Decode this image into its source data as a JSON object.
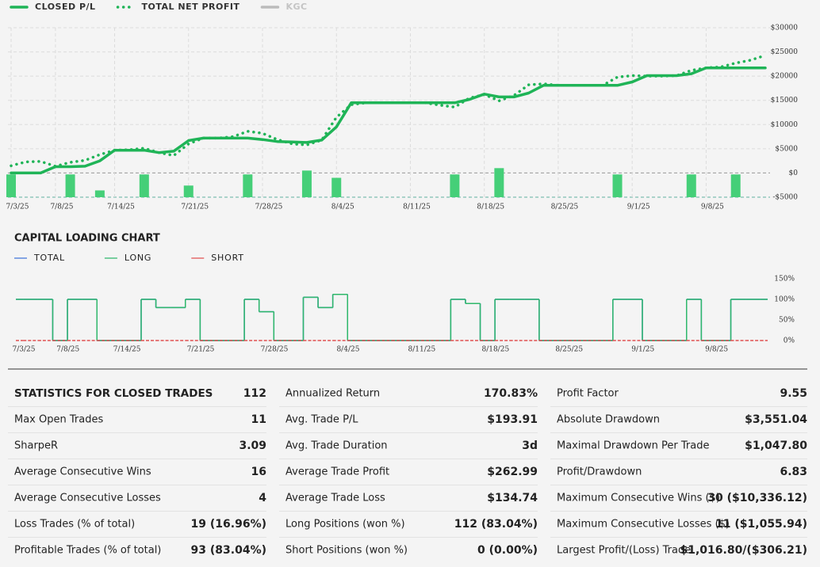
{
  "chart_data": [
    {
      "type": "line",
      "categories": [
        "7/3/25",
        null,
        null,
        "7/8/25",
        null,
        null,
        null,
        "7/14/25",
        null,
        null,
        null,
        null,
        "7/21/25",
        null,
        null,
        null,
        null,
        "7/28/25",
        null,
        null,
        null,
        null,
        "8/4/25",
        null,
        null,
        null,
        null,
        "8/11/25",
        null,
        null,
        null,
        null,
        "8/18/25",
        null,
        null,
        null,
        null,
        "8/25/25",
        null,
        null,
        null,
        null,
        "9/1/25",
        null,
        null,
        null,
        null,
        "9/8/25",
        null,
        null,
        null,
        null
      ],
      "series": [
        {
          "name": "CLOSED P/L",
          "type": "line",
          "dash": "solid",
          "color": "#1fb457",
          "values": [
            0,
            0,
            0,
            1300,
            1300,
            1400,
            2500,
            4700,
            4700,
            4700,
            4200,
            4500,
            6700,
            7200,
            7200,
            7200,
            7200,
            6900,
            6500,
            6400,
            6300,
            6800,
            9500,
            14500,
            14500,
            14500,
            14500,
            14500,
            14500,
            14500,
            14500,
            15200,
            16300,
            15700,
            15700,
            16500,
            18100,
            18100,
            18100,
            18100,
            18100,
            18100,
            18800,
            20100,
            20100,
            20100,
            20500,
            21700,
            21700,
            21700,
            21700,
            21700
          ]
        },
        {
          "name": "TOTAL NET PROFIT",
          "type": "line",
          "dash": "dotted",
          "color": "#1fb457",
          "values": [
            1500,
            2300,
            2400,
            1400,
            2200,
            2600,
            3800,
            4700,
            4800,
            5100,
            4200,
            3600,
            6000,
            7200,
            7200,
            7500,
            8600,
            8200,
            6900,
            6000,
            5800,
            6800,
            11500,
            14100,
            14500,
            14500,
            14500,
            14500,
            14500,
            14000,
            13600,
            15500,
            16200,
            14900,
            16000,
            18200,
            18400,
            18100,
            18100,
            18100,
            18100,
            19800,
            20100,
            20000,
            20000,
            20100,
            21200,
            21700,
            21900,
            22700,
            23300,
            24300
          ]
        },
        {
          "name": "KGC",
          "type": "line",
          "dash": "solid",
          "color": "#bbbbbb",
          "visible": false
        },
        {
          "type": "bar",
          "color": "#45cf78",
          "values": [
            -300,
            null,
            null,
            null,
            -300,
            null,
            -3600,
            null,
            null,
            -300,
            null,
            null,
            -2600,
            null,
            null,
            null,
            -300,
            null,
            null,
            null,
            500,
            null,
            -1000,
            null,
            null,
            null,
            null,
            null,
            null,
            null,
            -300,
            null,
            null,
            1000,
            null,
            null,
            null,
            null,
            null,
            null,
            null,
            -300,
            null,
            null,
            null,
            null,
            -300,
            null,
            null,
            -300,
            null,
            null
          ]
        }
      ],
      "ylim": [
        -5000,
        30000
      ],
      "yticks": [
        {
          "value": -5000,
          "label": "-$5000"
        },
        {
          "value": 0,
          "label": "$0"
        },
        {
          "value": 5000,
          "label": "$5000"
        },
        {
          "value": 10000,
          "label": "$10000"
        },
        {
          "value": 15000,
          "label": "$15000"
        },
        {
          "value": 20000,
          "label": "$20000"
        },
        {
          "value": 25000,
          "label": "$25000"
        },
        {
          "value": 30000,
          "label": "$30000"
        }
      ],
      "grid": true
    },
    {
      "type": "step",
      "title": "CAPITAL LOADING CHART",
      "categories": [
        "7/3/25",
        null,
        null,
        "7/8/25",
        null,
        null,
        null,
        "7/14/25",
        null,
        null,
        null,
        null,
        "7/21/25",
        null,
        null,
        null,
        null,
        "7/28/25",
        null,
        null,
        null,
        null,
        "8/4/25",
        null,
        null,
        null,
        null,
        "8/11/25",
        null,
        null,
        null,
        null,
        "8/18/25",
        null,
        null,
        null,
        null,
        "8/25/25",
        null,
        null,
        null,
        null,
        "9/1/25",
        null,
        null,
        null,
        null,
        "9/8/25",
        null,
        null,
        null,
        null
      ],
      "series": [
        {
          "name": "TOTAL",
          "color": "#3a6fd8",
          "values": [
            100,
            100,
            100,
            0,
            100,
            100,
            0,
            0,
            0,
            100,
            80,
            80,
            100,
            0,
            0,
            0,
            100,
            70,
            0,
            0,
            105,
            80,
            112,
            0,
            0,
            0,
            0,
            0,
            0,
            0,
            100,
            90,
            0,
            100,
            100,
            100,
            0,
            0,
            0,
            0,
            0,
            100,
            100,
            0,
            0,
            0,
            100,
            0,
            0,
            100,
            100,
            100
          ]
        },
        {
          "name": "LONG",
          "color": "#2fb86a",
          "values": [
            100,
            100,
            100,
            0,
            100,
            100,
            0,
            0,
            0,
            100,
            80,
            80,
            100,
            0,
            0,
            0,
            100,
            70,
            0,
            0,
            105,
            80,
            112,
            0,
            0,
            0,
            0,
            0,
            0,
            0,
            100,
            90,
            0,
            100,
            100,
            100,
            0,
            0,
            0,
            0,
            0,
            100,
            100,
            0,
            0,
            0,
            100,
            0,
            0,
            100,
            100,
            100
          ]
        },
        {
          "name": "SHORT",
          "color": "#e05050",
          "dash": "dashed",
          "values": [
            0,
            0,
            0,
            0,
            0,
            0,
            0,
            0,
            0,
            0,
            0,
            0,
            0,
            0,
            0,
            0,
            0,
            0,
            0,
            0,
            0,
            0,
            0,
            0,
            0,
            0,
            0,
            0,
            0,
            0,
            0,
            0,
            0,
            0,
            0,
            0,
            0,
            0,
            0,
            0,
            0,
            0,
            0,
            0,
            0,
            0,
            0,
            0,
            0,
            0,
            0,
            0
          ]
        }
      ],
      "ylim": [
        0,
        150
      ],
      "yticks": [
        {
          "value": 0,
          "label": "0%"
        },
        {
          "value": 50,
          "label": "50%"
        },
        {
          "value": 100,
          "label": "100%"
        },
        {
          "value": 150,
          "label": "150%"
        }
      ],
      "grid": false
    }
  ],
  "statistics": {
    "columns": [
      [
        {
          "label": "STATISTICS FOR CLOSED TRADES",
          "value": "112"
        },
        {
          "label": "Max Open Trades",
          "value": "11"
        },
        {
          "label": "SharpeR",
          "value": "3.09"
        },
        {
          "label": "Average Consecutive Wins",
          "value": "16"
        },
        {
          "label": "Average Consecutive Losses",
          "value": "4"
        },
        {
          "label": "Loss Trades (% of total)",
          "value": "19 (16.96%)"
        },
        {
          "label": "Profitable Trades (% of total)",
          "value": "93 (83.04%)"
        }
      ],
      [
        {
          "label": "Annualized Return",
          "value": "170.83%"
        },
        {
          "label": "Avg. Trade P/L",
          "value": "$193.91"
        },
        {
          "label": "Avg. Trade Duration",
          "value": "3d"
        },
        {
          "label": "Average Trade Profit",
          "value": "$262.99"
        },
        {
          "label": "Average Trade Loss",
          "value": "$134.74"
        },
        {
          "label": "Long Positions (won %)",
          "value": "112 (83.04%)"
        },
        {
          "label": "Short Positions (won %)",
          "value": "0 (0.00%)"
        }
      ],
      [
        {
          "label": "Profit Factor",
          "value": "9.55"
        },
        {
          "label": "Absolute Drawdown",
          "value": "$3,551.04"
        },
        {
          "label": "Maximal Drawdown Per Trade",
          "value": "$1,047.80"
        },
        {
          "label": "Profit/Drawdown",
          "value": "6.83"
        },
        {
          "label": "Maximum Consecutive Wins ($)",
          "value": "30 ($10,336.12)"
        },
        {
          "label": "Maximum Consecutive Losses ($)",
          "value": "11 ($1,055.94)"
        },
        {
          "label": "Largest Profit/(Loss) Trade",
          "value": "$1,016.80/($306.21)"
        }
      ]
    ]
  }
}
